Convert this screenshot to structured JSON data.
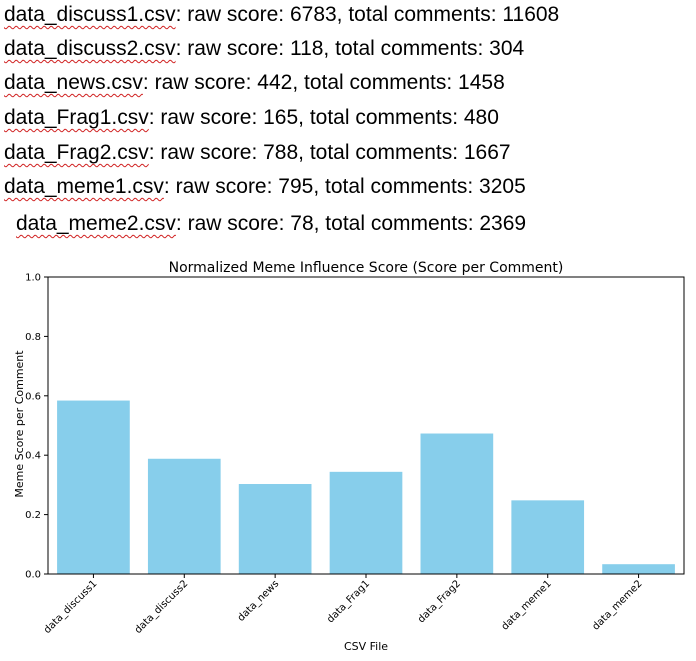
{
  "summary_lines": [
    {
      "file": "data_discuss1.csv",
      "rest": ": raw score: 6783, total comments: 11608"
    },
    {
      "file": "data_discuss2.csv",
      "rest": ": raw score: 118, total comments: 304"
    },
    {
      "file": "data_news.csv",
      "rest": ": raw score: 442, total comments: 1458"
    },
    {
      "file": "data_Frag1.csv",
      "rest": ": raw score: 165, total comments: 480"
    },
    {
      "file": "data_Frag2.csv",
      "rest": ": raw score: 788, total comments: 1667"
    },
    {
      "file": "data_meme1.csv",
      "rest": ": raw score: 795, total comments: 3205"
    },
    {
      "file": "data_meme2.csv",
      "rest": ": raw score: 78, total comments: 2369"
    }
  ],
  "chart_data": {
    "type": "bar",
    "title": "Normalized Meme Influence Score (Score per Comment)",
    "xlabel": "CSV File",
    "ylabel": "Meme Score per Comment",
    "categories": [
      "data_discuss1",
      "data_discuss2",
      "data_news",
      "data_Frag1",
      "data_Frag2",
      "data_meme1",
      "data_meme2"
    ],
    "values": [
      0.584,
      0.388,
      0.303,
      0.344,
      0.473,
      0.248,
      0.033
    ],
    "ylim": [
      0,
      1.0
    ],
    "yticks": [
      "0.0",
      "0.2",
      "0.4",
      "0.6",
      "0.8",
      "1.0"
    ],
    "bar_color": "#87ceeb",
    "grid": false
  }
}
